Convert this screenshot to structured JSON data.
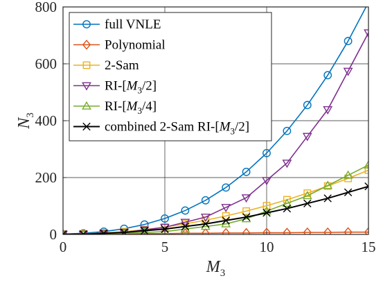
{
  "chart_data": {
    "type": "line",
    "xlabel": "M",
    "xlabel_sub": "3",
    "ylabel": "N",
    "ylabel_sub": "3",
    "xlim": [
      0,
      15
    ],
    "ylim": [
      0,
      800
    ],
    "xticks": [
      0,
      5,
      10,
      15
    ],
    "yticks": [
      0,
      200,
      400,
      600,
      800
    ],
    "grid": true,
    "legend_position": "top-left",
    "x": [
      0,
      1,
      2,
      3,
      4,
      5,
      6,
      7,
      8,
      9,
      10,
      11,
      12,
      13,
      14,
      15
    ],
    "series": [
      {
        "name": "full VNLE",
        "color": "#0072BD",
        "marker": "circle",
        "values": [
          1,
          4,
          10,
          20,
          35,
          56,
          84,
          120,
          165,
          220,
          286,
          364,
          455,
          560,
          680,
          816
        ]
      },
      {
        "name": "Polynomial",
        "color": "#D95319",
        "marker": "diamond",
        "values": [
          1,
          1,
          2,
          2,
          3,
          3,
          4,
          4,
          5,
          5,
          6,
          6,
          7,
          7,
          8,
          8
        ]
      },
      {
        "name": "2-Sam",
        "color": "#EDB120",
        "marker": "square",
        "values": [
          1,
          2,
          5,
          10,
          17,
          26,
          37,
          50,
          65,
          82,
          101,
          122,
          145,
          170,
          197,
          226
        ]
      },
      {
        "name": "RI-[M3/2]",
        "name_parts": [
          "RI-[",
          "M",
          "3",
          "/2]"
        ],
        "color": "#7E2F8E",
        "marker": "triangle-down",
        "values": [
          1,
          1,
          4,
          7,
          16,
          25,
          43,
          61,
          95,
          129,
          190,
          251,
          345,
          439,
          574,
          709
        ]
      },
      {
        "name": "RI-[M3/4]",
        "name_parts": [
          "RI-[",
          "M",
          "3",
          "/4]"
        ],
        "color": "#77AC30",
        "marker": "triangle-up",
        "values": [
          1,
          1,
          1,
          4,
          7,
          10,
          19,
          28,
          37,
          55,
          82,
          109,
          136,
          172,
          208,
          244
        ]
      },
      {
        "name": "combined 2-Sam RI-[M3/2]",
        "name_parts": [
          "combined 2-Sam RI-[",
          "M",
          "3",
          "/2]"
        ],
        "color": "#000000",
        "marker": "x",
        "values": [
          1,
          1,
          4,
          7,
          13,
          19,
          28,
          37,
          49,
          61,
          76,
          91,
          109,
          127,
          148,
          169
        ]
      }
    ]
  }
}
